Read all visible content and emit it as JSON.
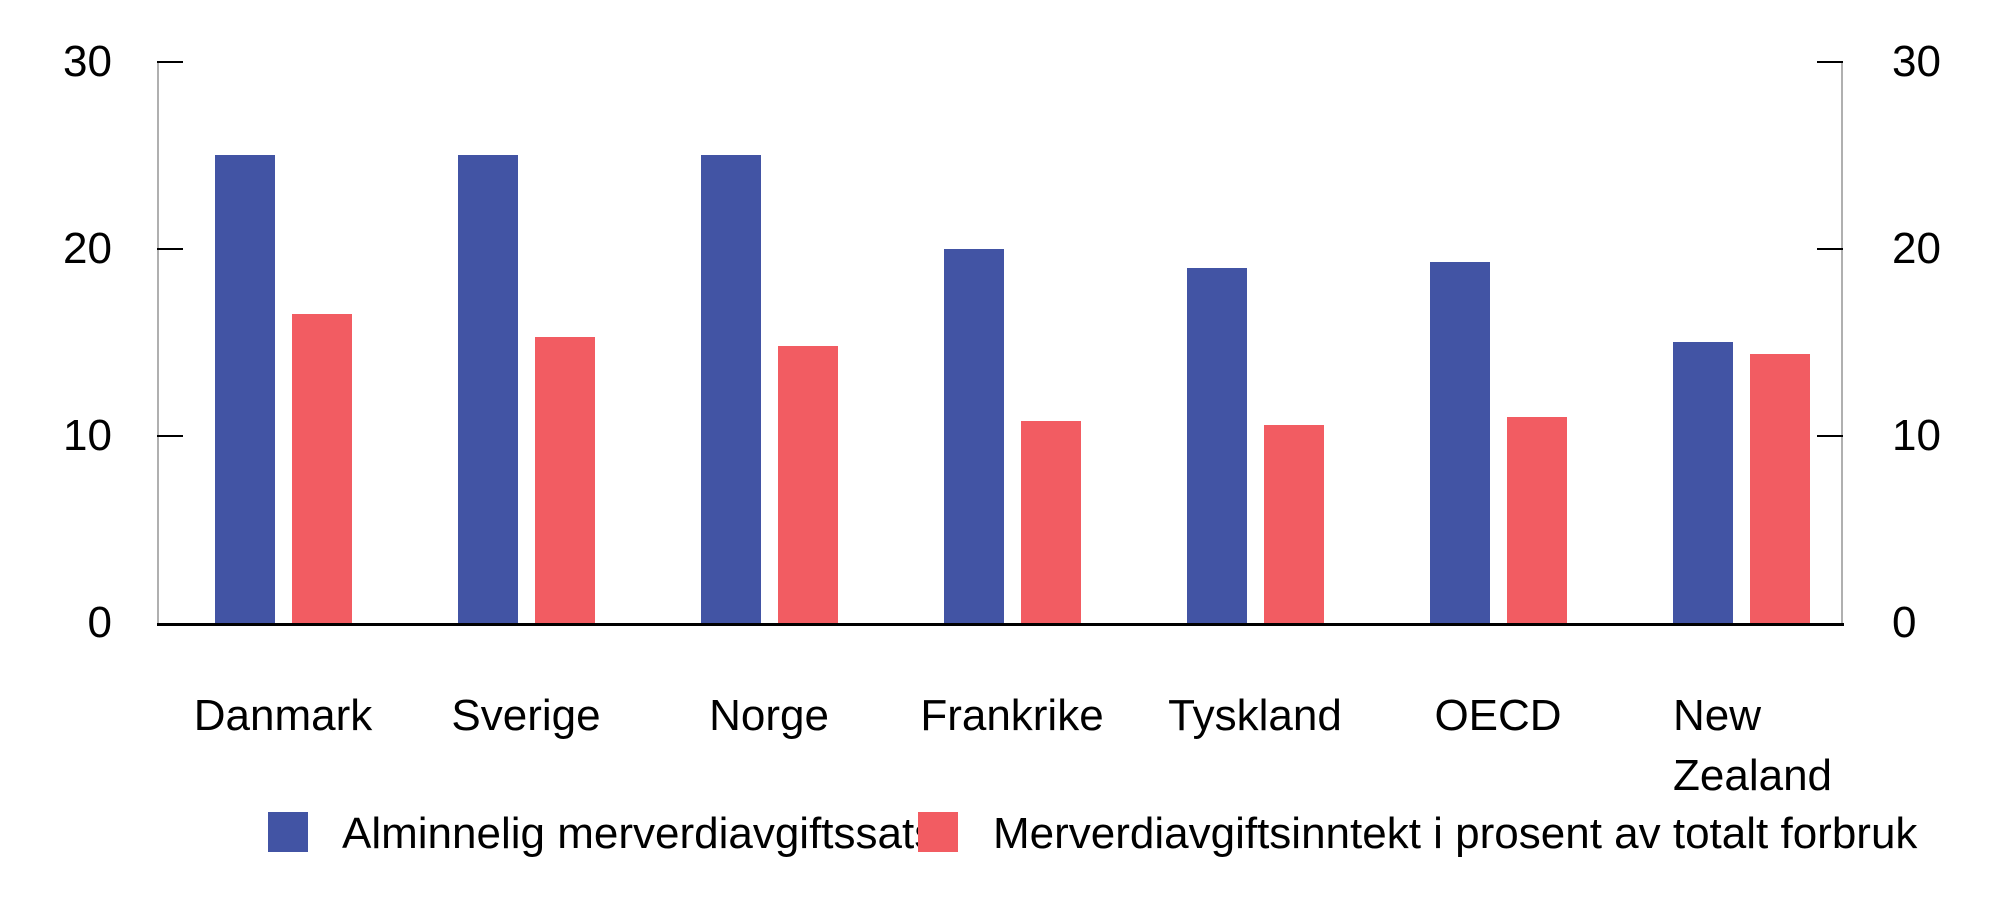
{
  "chart_data": {
    "type": "bar",
    "title": "",
    "categories": [
      "Danmark",
      "Sverige",
      "Norge",
      "Frankrike",
      "Tyskland",
      "OECD",
      "New\nZealand"
    ],
    "series": [
      {
        "name": "Alminnelig merverdiavgiftssats",
        "color": "#4254a4",
        "values": [
          25,
          25,
          25,
          20,
          19,
          19.3,
          15
        ]
      },
      {
        "name": "Merverdiavgiftsinntekt i prosent av totalt forbruk",
        "color": "#f25c62",
        "values": [
          16.5,
          15.3,
          14.8,
          10.8,
          10.6,
          11.0,
          14.4
        ]
      }
    ],
    "xlabel": "",
    "ylabel": "",
    "ylim": [
      0,
      30
    ],
    "yticks": [
      0,
      10,
      20,
      30
    ],
    "y_axis_sides": "both",
    "grid": false,
    "legend_position": "bottom",
    "colors": {
      "axis_line": "#b0b0b0",
      "tick_and_baseline": "#000000",
      "text": "#000000",
      "background": "#ffffff"
    }
  }
}
